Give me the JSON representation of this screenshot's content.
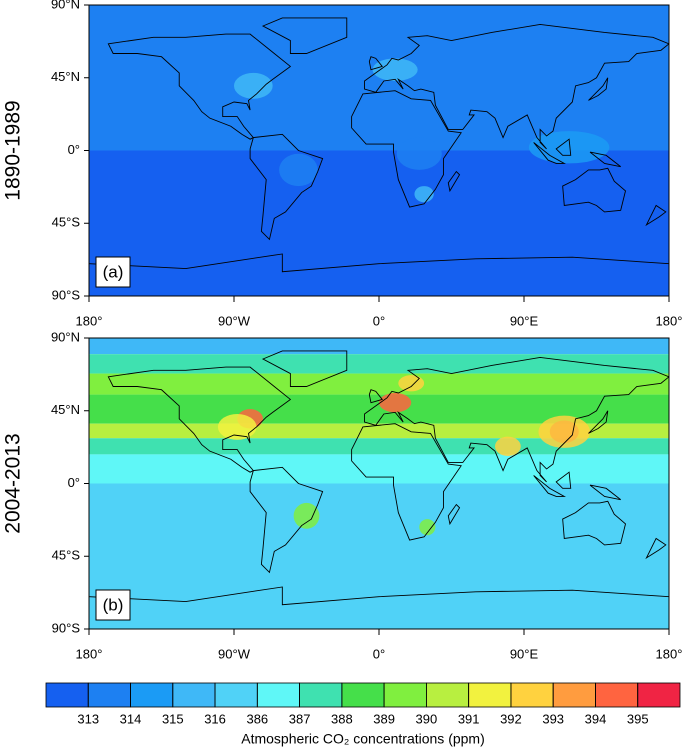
{
  "panels": [
    {
      "label": "(a)",
      "period": "1890-1989"
    },
    {
      "label": "(b)",
      "period": "2004-2013"
    }
  ],
  "axes": {
    "lat_labels": [
      "90°N",
      "45°N",
      "0°",
      "45°S",
      "90°S"
    ],
    "lon_labels": [
      "180°",
      "90°W",
      "0°",
      "90°E",
      "180°"
    ]
  },
  "colorbar": {
    "title": "Atmospheric CO₂ concentrations (ppm)",
    "ticks": [
      313,
      314,
      315,
      316,
      386,
      387,
      388,
      389,
      390,
      391,
      392,
      393,
      394,
      395
    ],
    "colors": [
      "#1560f0",
      "#1d80f2",
      "#1b9bf5",
      "#3fb8f7",
      "#50d2f7",
      "#5ff7f7",
      "#3fe1b0",
      "#45df4a",
      "#80ef3f",
      "#b8ef40",
      "#f2f23f",
      "#ffd23f",
      "#ff9c3f",
      "#ff6440",
      "#f02444"
    ]
  }
}
